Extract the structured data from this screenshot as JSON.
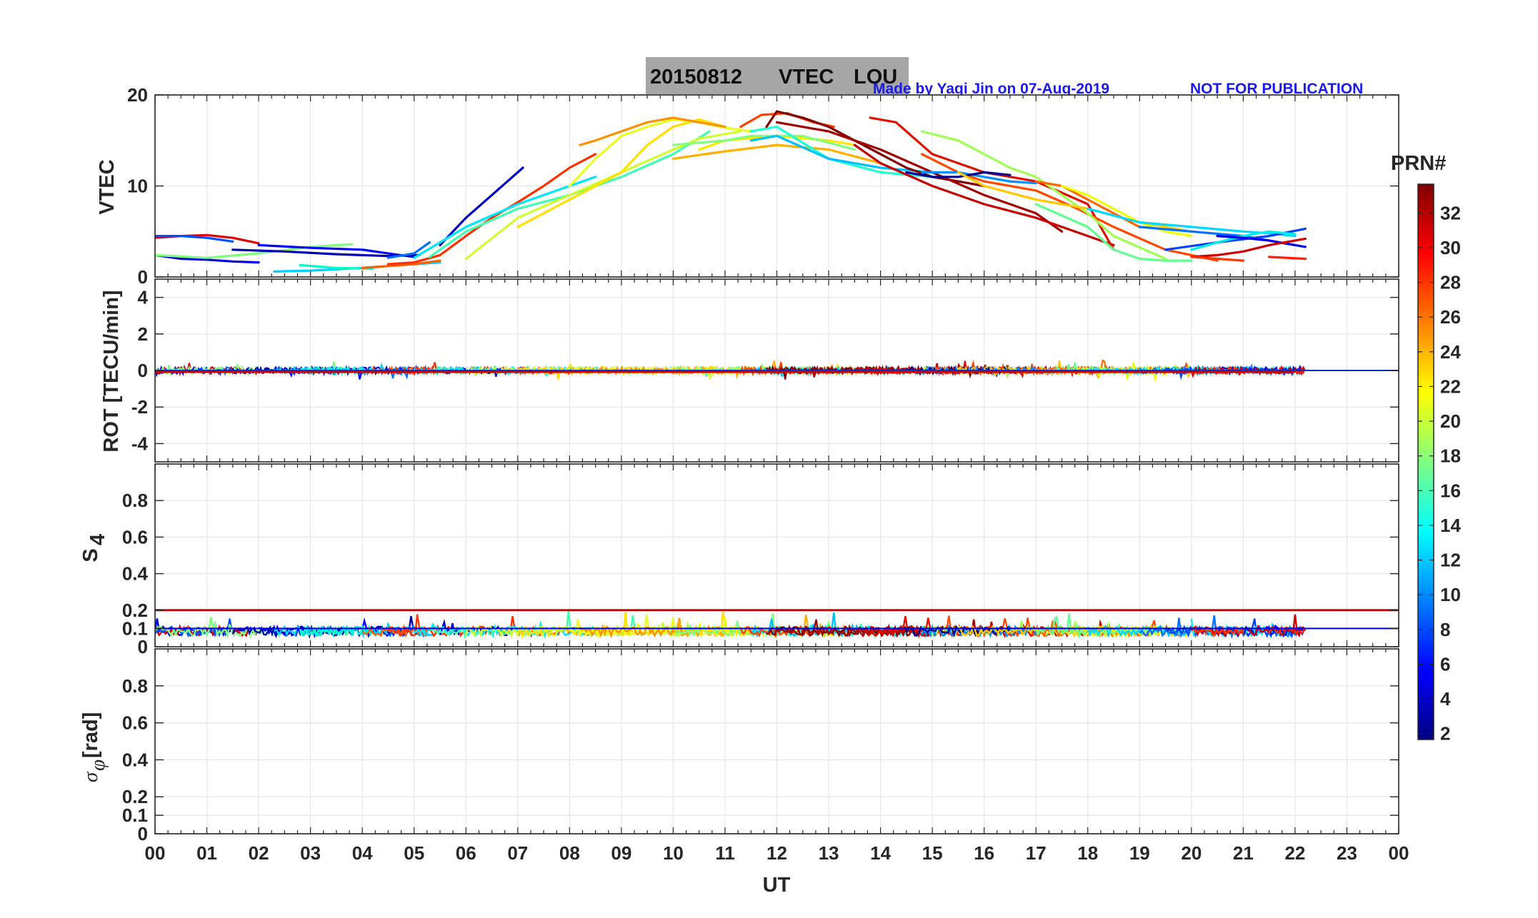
{
  "figure": {
    "title_date": "20150812",
    "title_product": "VTEC",
    "title_station": "LOU",
    "credit": "Made by Yaqi Jin on 07-Aug-2019",
    "notice": "NOT FOR PUBLICATION",
    "colorbar_label": "PRN#",
    "colorbar_ticks": [
      "32",
      "30",
      "28",
      "26",
      "24",
      "22",
      "20",
      "18",
      "16",
      "14",
      "12",
      "10",
      "8",
      "6",
      "4",
      "2"
    ],
    "xlabel": "UT",
    "x_ticks": [
      "00",
      "01",
      "02",
      "03",
      "04",
      "05",
      "06",
      "07",
      "08",
      "09",
      "10",
      "11",
      "12",
      "13",
      "14",
      "15",
      "16",
      "17",
      "18",
      "19",
      "20",
      "21",
      "22",
      "23",
      "00"
    ]
  },
  "chart_data": [
    {
      "type": "line",
      "panel": "VTEC",
      "ylabel": "VTEC",
      "xlim": [
        0,
        24
      ],
      "ylim": [
        0,
        20
      ],
      "y_ticks": [
        "0",
        "10",
        "20"
      ],
      "grid": true,
      "series": [
        {
          "prn": 3,
          "color": "#0000e0",
          "x": [
            0,
            0.5,
            1,
            1.5,
            2
          ],
          "y": [
            2.4,
            2.0,
            1.9,
            1.7,
            1.6
          ]
        },
        {
          "prn": 30,
          "color": "#e00000",
          "x": [
            0,
            0.5,
            1,
            1.5,
            2
          ],
          "y": [
            4.3,
            4.5,
            4.6,
            4.3,
            3.7
          ]
        },
        {
          "prn": 8,
          "color": "#0050ff",
          "x": [
            0,
            0.5,
            1,
            1.5
          ],
          "y": [
            4.5,
            4.5,
            4.3,
            3.9
          ]
        },
        {
          "prn": 15,
          "color": "#7cff7c",
          "x": [
            0,
            1,
            2,
            3,
            3.8
          ],
          "y": [
            2.4,
            2.1,
            2.6,
            3.3,
            3.6
          ]
        },
        {
          "prn": 4,
          "color": "#0000ff",
          "x": [
            2,
            3,
            4,
            4.6,
            5.0
          ],
          "y": [
            3.5,
            3.2,
            3.0,
            2.5,
            2.2
          ]
        },
        {
          "prn": 2,
          "color": "#0000b0",
          "x": [
            1.5,
            2.5,
            3.5,
            4.5,
            5.1
          ],
          "y": [
            3.0,
            2.8,
            2.5,
            2.3,
            2.4
          ]
        },
        {
          "prn": 11,
          "color": "#00d0ff",
          "x": [
            2.3,
            3,
            4,
            5,
            5.5
          ],
          "y": [
            0.6,
            0.7,
            1.0,
            1.4,
            1.6
          ]
        },
        {
          "prn": 13,
          "color": "#00ffc8",
          "x": [
            2.8,
            3.5,
            4.2
          ],
          "y": [
            1.3,
            1.0,
            0.9
          ]
        },
        {
          "prn": 7,
          "color": "#0070ff",
          "x": [
            4.5,
            5,
            5.3
          ],
          "y": [
            2.1,
            2.6,
            3.8
          ]
        },
        {
          "prn": 25,
          "color": "#ff6000",
          "x": [
            4.0,
            4.5,
            5.0,
            5.5
          ],
          "y": [
            1.0,
            1.2,
            1.4,
            1.8
          ]
        },
        {
          "prn": 27,
          "color": "#ff3000",
          "x": [
            4.5,
            5.0,
            5.5,
            6.0,
            6.5,
            7.0,
            7.5,
            8.0,
            8.5
          ],
          "y": [
            1.4,
            1.6,
            2.4,
            4.5,
            6.5,
            8.2,
            10.0,
            12.0,
            13.5
          ]
        },
        {
          "prn": 5,
          "color": "#0000c8",
          "x": [
            5.5,
            6.0,
            6.5,
            7.1
          ],
          "y": [
            3.5,
            6.5,
            9.0,
            12.0
          ]
        },
        {
          "prn": 12,
          "color": "#00e8ff",
          "x": [
            5.0,
            6.0,
            7.0,
            8.0,
            8.5
          ],
          "y": [
            2.1,
            5.5,
            8.0,
            10.0,
            11.0
          ]
        },
        {
          "prn": 14,
          "color": "#40ffb0",
          "x": [
            5.3,
            6,
            7,
            8,
            9,
            10,
            10.7
          ],
          "y": [
            2.2,
            5.0,
            7.5,
            9.0,
            11.0,
            13.5,
            16.0
          ]
        },
        {
          "prn": 19,
          "color": "#d0ff30",
          "x": [
            6.0,
            7,
            8,
            9,
            10,
            10.5,
            11.3
          ],
          "y": [
            2.0,
            6.5,
            9.0,
            11.5,
            14.0,
            15.2,
            16.0
          ]
        },
        {
          "prn": 21,
          "color": "#ffe000",
          "x": [
            7.0,
            8,
            9,
            9.5,
            10,
            10.5,
            11
          ],
          "y": [
            5.5,
            8.5,
            11.5,
            14.5,
            16.5,
            17.3,
            16.5
          ]
        },
        {
          "prn": 18,
          "color": "#e8ff20",
          "x": [
            8.0,
            8.5,
            9,
            9.5,
            10,
            10.5,
            11,
            11.5
          ],
          "y": [
            10.0,
            13.0,
            15.5,
            16.5,
            17.3,
            17.0,
            16.4,
            16.0
          ]
        },
        {
          "prn": 24,
          "color": "#ff9000",
          "x": [
            8.2,
            8.5,
            9.0,
            9.5,
            10.0,
            10.5,
            11
          ],
          "y": [
            14.5,
            15.0,
            16.0,
            17.0,
            17.5,
            17.0,
            16.5
          ]
        },
        {
          "prn": 23,
          "color": "#ffb000",
          "x": [
            10.0,
            11,
            12,
            13,
            14
          ],
          "y": [
            13.0,
            13.8,
            14.5,
            14.0,
            12.5
          ]
        },
        {
          "prn": 20,
          "color": "#ffe800",
          "x": [
            10.5,
            11,
            12,
            13,
            13.5
          ],
          "y": [
            14.0,
            15.0,
            15.5,
            15.0,
            14.5
          ]
        },
        {
          "prn": 16,
          "color": "#80ff80",
          "x": [
            10.0,
            11,
            11.5,
            12.5,
            13.5
          ],
          "y": [
            14.5,
            15.0,
            15.5,
            15.5,
            14.0
          ]
        },
        {
          "prn": 13,
          "color": "#20ffd0",
          "x": [
            11.5,
            12.0,
            13.0,
            14.0,
            15.0
          ],
          "y": [
            16.0,
            16.5,
            13.0,
            11.5,
            11.0
          ]
        },
        {
          "prn": 10,
          "color": "#00c0ff",
          "x": [
            11.5,
            12,
            13,
            14,
            15
          ],
          "y": [
            15.0,
            15.5,
            13.0,
            12.0,
            11.5
          ]
        },
        {
          "prn": 26,
          "color": "#ff4000",
          "x": [
            11.3,
            11.7,
            12.2,
            12.7,
            13.1
          ],
          "y": [
            16.5,
            17.8,
            18.0,
            17.0,
            16.5
          ]
        },
        {
          "prn": 32,
          "color": "#800000",
          "x": [
            11.8,
            12.0,
            12.5,
            13.0,
            13.5,
            14.0,
            14.5,
            15.0,
            15.5,
            16.0
          ],
          "y": [
            16.5,
            18.2,
            17.5,
            16.5,
            15.0,
            13.5,
            12.0,
            11.0,
            10.5,
            10.0
          ]
        },
        {
          "prn": 31,
          "color": "#a00000",
          "x": [
            12.0,
            13.0,
            14.0,
            15.0,
            16.0,
            17.0,
            17.5
          ],
          "y": [
            17.0,
            16.0,
            14.0,
            11.5,
            9.0,
            7.0,
            5.0
          ]
        },
        {
          "prn": 29,
          "color": "#c80000",
          "x": [
            13.5,
            14.0,
            15.0,
            16.0,
            17.0,
            18.0,
            18.5
          ],
          "y": [
            14.5,
            12.5,
            10.0,
            8.0,
            6.5,
            4.5,
            3.5
          ]
        },
        {
          "prn": 28,
          "color": "#e01000",
          "x": [
            13.8,
            14.3,
            15.0,
            16.0,
            17.0,
            18.0,
            18.5
          ],
          "y": [
            17.5,
            17.0,
            13.5,
            11.5,
            10.5,
            8.0,
            3.0
          ]
        },
        {
          "prn": 26,
          "color": "#ff4800",
          "x": [
            14.8,
            15.5,
            16.0,
            17.0,
            17.8,
            18.5,
            19.5,
            20.5
          ],
          "y": [
            13.5,
            11.5,
            10.5,
            9.5,
            7.5,
            5.5,
            3.0,
            1.8
          ]
        },
        {
          "prn": 17,
          "color": "#a0ff50",
          "x": [
            14.8,
            15.5,
            16.5,
            17.0,
            17.5,
            18.0,
            18.5,
            19.5
          ],
          "y": [
            16.0,
            15.0,
            12.0,
            11.0,
            9.0,
            7.0,
            4.5,
            2.0
          ]
        },
        {
          "prn": 9,
          "color": "#0090ff",
          "x": [
            14.8,
            15.5,
            16.0,
            16.5,
            17.0
          ],
          "y": [
            11.5,
            11.5,
            11.0,
            10.5,
            10.3
          ]
        },
        {
          "prn": 1,
          "color": "#000090",
          "x": [
            14.5,
            15.0,
            15.5,
            16.0,
            16.5
          ],
          "y": [
            11.5,
            11.0,
            11.0,
            11.5,
            11.2
          ]
        },
        {
          "prn": 22,
          "color": "#ffc800",
          "x": [
            15.5,
            16.0,
            17.0,
            18.0,
            19.0,
            20.0
          ],
          "y": [
            11.5,
            10.0,
            8.5,
            7.5,
            6.0,
            5.0
          ]
        },
        {
          "prn": 25,
          "color": "#ff6800",
          "x": [
            17.0,
            17.5,
            18.0,
            18.5,
            19.0
          ],
          "y": [
            10.5,
            10.0,
            8.5,
            7.0,
            5.5
          ]
        },
        {
          "prn": 20,
          "color": "#f0ff00",
          "x": [
            17.5,
            18.0,
            18.5,
            19.0,
            19.5,
            20.0
          ],
          "y": [
            10.0,
            9.0,
            7.5,
            6.0,
            5.0,
            4.5
          ]
        },
        {
          "prn": 15,
          "color": "#60ff90",
          "x": [
            17.0,
            18.0,
            18.5,
            19.0,
            19.5,
            20.0
          ],
          "y": [
            8.0,
            5.5,
            3.0,
            2.0,
            1.8,
            1.8
          ]
        },
        {
          "prn": 11,
          "color": "#00d8ff",
          "x": [
            18.0,
            19.0,
            20.0,
            21.0,
            21.5,
            22.0
          ],
          "y": [
            7.5,
            6.0,
            5.5,
            5.0,
            4.8,
            4.5
          ]
        },
        {
          "prn": 7,
          "color": "#0070ff",
          "x": [
            19.0,
            20.0,
            21.0,
            22.0
          ],
          "y": [
            5.5,
            5.0,
            4.5,
            3.5
          ]
        },
        {
          "prn": 6,
          "color": "#0040ff",
          "x": [
            19.5,
            20.5,
            21.5,
            22.2
          ],
          "y": [
            3.0,
            3.8,
            4.5,
            5.3
          ]
        },
        {
          "prn": 12,
          "color": "#00f0e8",
          "x": [
            20.0,
            20.5,
            21.0,
            21.5,
            22.0
          ],
          "y": [
            3.0,
            3.8,
            4.5,
            5.0,
            4.7
          ]
        },
        {
          "prn": 3,
          "color": "#0000e8",
          "x": [
            20.5,
            21.0,
            21.5,
            22.2
          ],
          "y": [
            4.5,
            4.3,
            4.0,
            3.3
          ]
        },
        {
          "prn": 30,
          "color": "#d00000",
          "x": [
            20.0,
            20.5,
            21.0,
            21.5,
            22.2
          ],
          "y": [
            2.2,
            2.4,
            2.8,
            3.5,
            4.2
          ]
        },
        {
          "prn": 26,
          "color": "#ff3800",
          "x": [
            20.0,
            20.5,
            21.0
          ],
          "y": [
            2.2,
            2.0,
            1.8
          ]
        },
        {
          "prn": 27,
          "color": "#ff2000",
          "x": [
            21.5,
            22.2
          ],
          "y": [
            2.2,
            2.0
          ]
        }
      ]
    },
    {
      "type": "line",
      "panel": "ROT",
      "ylabel": "ROT [TECU/min]",
      "xlim": [
        0,
        24
      ],
      "ylim": [
        -5,
        5
      ],
      "y_ticks": [
        "4",
        "2",
        "0",
        "-2",
        "-4"
      ],
      "grid": true
    },
    {
      "type": "line",
      "panel": "S4",
      "ylabel": "S",
      "ylabel_subscript": "4",
      "xlim": [
        0,
        24
      ],
      "ylim": [
        0,
        1
      ],
      "y_ticks": [
        "0.8",
        "0.6",
        "0.4",
        "0.2",
        "0.1",
        "0"
      ],
      "threshold": {
        "value": 0.2,
        "color": "#d00000"
      },
      "grid": true
    },
    {
      "type": "line",
      "panel": "sigma_phi",
      "ylabel": "[rad]",
      "ylabel_symbol": "σ",
      "ylabel_subscript": "φ",
      "xlim": [
        0,
        24
      ],
      "ylim": [
        0,
        1
      ],
      "y_ticks": [
        "0.8",
        "0.6",
        "0.4",
        "0.2",
        "0.1",
        "0"
      ],
      "grid": true
    }
  ]
}
